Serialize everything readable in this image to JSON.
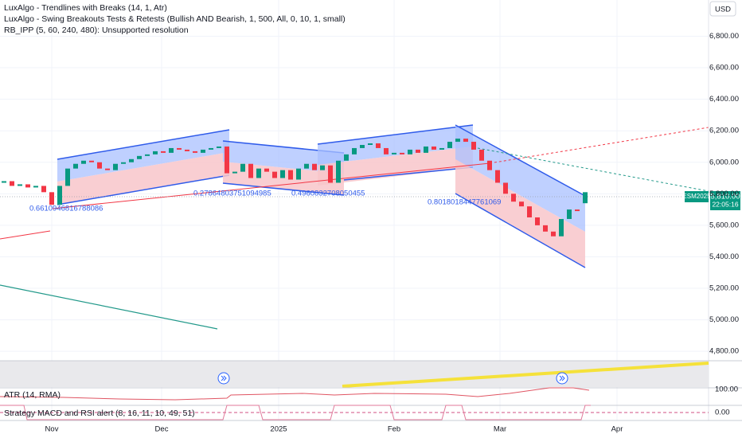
{
  "chart_data": {
    "type": "candlestick",
    "indicators": [
      "LuxAlgo - Trendlines with Breaks (14, 1, Atr)",
      "LuxAlgo - Swing Breakouts Tests & Retests (Bullish AND Bearish, 1, 500, All, 0, 10, 1, small)",
      "RB_IPP (5, 60, 240, 480): Unsupported resolution"
    ],
    "pane_labels": [
      "ATR (14, RMA)",
      "Strategy MACD and RSI alert (8, 16, 11, 10, 49, 51)"
    ],
    "annotations": [
      "0.6610946816788086",
      "0.27864803751094985",
      "0.4960832708050455",
      "0.8018018447761069"
    ],
    "currency": "USD",
    "symbol": "ESM2025",
    "last_price": {
      "value": 5810,
      "label": "5,810.00"
    },
    "countdown": "22:05:16",
    "series": [
      {
        "name": null,
        "open": [
          5870,
          5880,
          5850,
          5860,
          5840,
          5850,
          5810,
          5730,
          5850,
          5960,
          5990,
          6010,
          6000,
          5960,
          5950,
          5990,
          6000,
          6020,
          6040,
          6050,
          6070,
          6060,
          6090,
          6080,
          6070,
          6060,
          6080,
          6090,
          6100,
          5930,
          5940,
          5990,
          5900,
          5960,
          5940,
          5900,
          5950,
          5890,
          5960,
          5990,
          5950,
          5980,
          5870,
          6010,
          6050,
          6090,
          6110,
          6120,
          6090,
          6050,
          6060,
          6050,
          6080,
          6060,
          6100,
          6080,
          6090,
          6130,
          6150,
          6130,
          6080,
          6010,
          5950,
          5870,
          5800,
          5750,
          5720,
          5650,
          5600,
          5560,
          5530,
          5640,
          5700,
          5740
        ],
        "close": [
          5880,
          5850,
          5860,
          5840,
          5850,
          5810,
          5730,
          5850,
          5960,
          5990,
          6010,
          6000,
          5960,
          5950,
          5990,
          6000,
          6020,
          6040,
          6050,
          6070,
          6060,
          6090,
          6080,
          6070,
          6060,
          6080,
          6090,
          6100,
          5930,
          5940,
          5990,
          5900,
          5960,
          5940,
          5900,
          5950,
          5890,
          5960,
          5990,
          5950,
          5980,
          5870,
          6010,
          6050,
          6090,
          6110,
          6120,
          6090,
          6050,
          6060,
          6050,
          6080,
          6060,
          6100,
          6080,
          6090,
          6130,
          6150,
          6130,
          6080,
          6010,
          5950,
          5870,
          5800,
          5750,
          5720,
          5650,
          5600,
          5560,
          5530,
          5640,
          5700,
          5690,
          5810
        ]
      }
    ],
    "up_color": "#089981",
    "down_color": "#f23645",
    "ylim": [
      4740,
      7030
    ],
    "yticks": [
      {
        "value": 4800,
        "label": "4,800.00"
      },
      {
        "value": 5000,
        "label": "5,000.00"
      },
      {
        "value": 5200,
        "label": "5,200.00"
      },
      {
        "value": 5400,
        "label": "5,400.00"
      },
      {
        "value": 5600,
        "label": "5,600.00"
      },
      {
        "value": 5800,
        "label": "5,800.00"
      },
      {
        "value": 6000,
        "label": "6,000.00"
      },
      {
        "value": 6200,
        "label": "6,200.00"
      },
      {
        "value": 6400,
        "label": "6,400.00"
      },
      {
        "value": 6600,
        "label": "6,600.00"
      },
      {
        "value": 6800,
        "label": "6,800.00"
      }
    ],
    "xticks": [
      {
        "value": 6,
        "label": "Nov"
      },
      {
        "value": 19.8,
        "label": "Dec"
      },
      {
        "value": 34.5,
        "label": "2025"
      },
      {
        "value": 49,
        "label": "Feb"
      },
      {
        "value": 62.3,
        "label": "Mar"
      },
      {
        "value": 77,
        "label": "Apr"
      }
    ],
    "atr_ticks": [
      {
        "value": 100,
        "label": "100.00"
      },
      {
        "value": 0,
        "label": "0.00"
      }
    ],
    "grid": true
  }
}
